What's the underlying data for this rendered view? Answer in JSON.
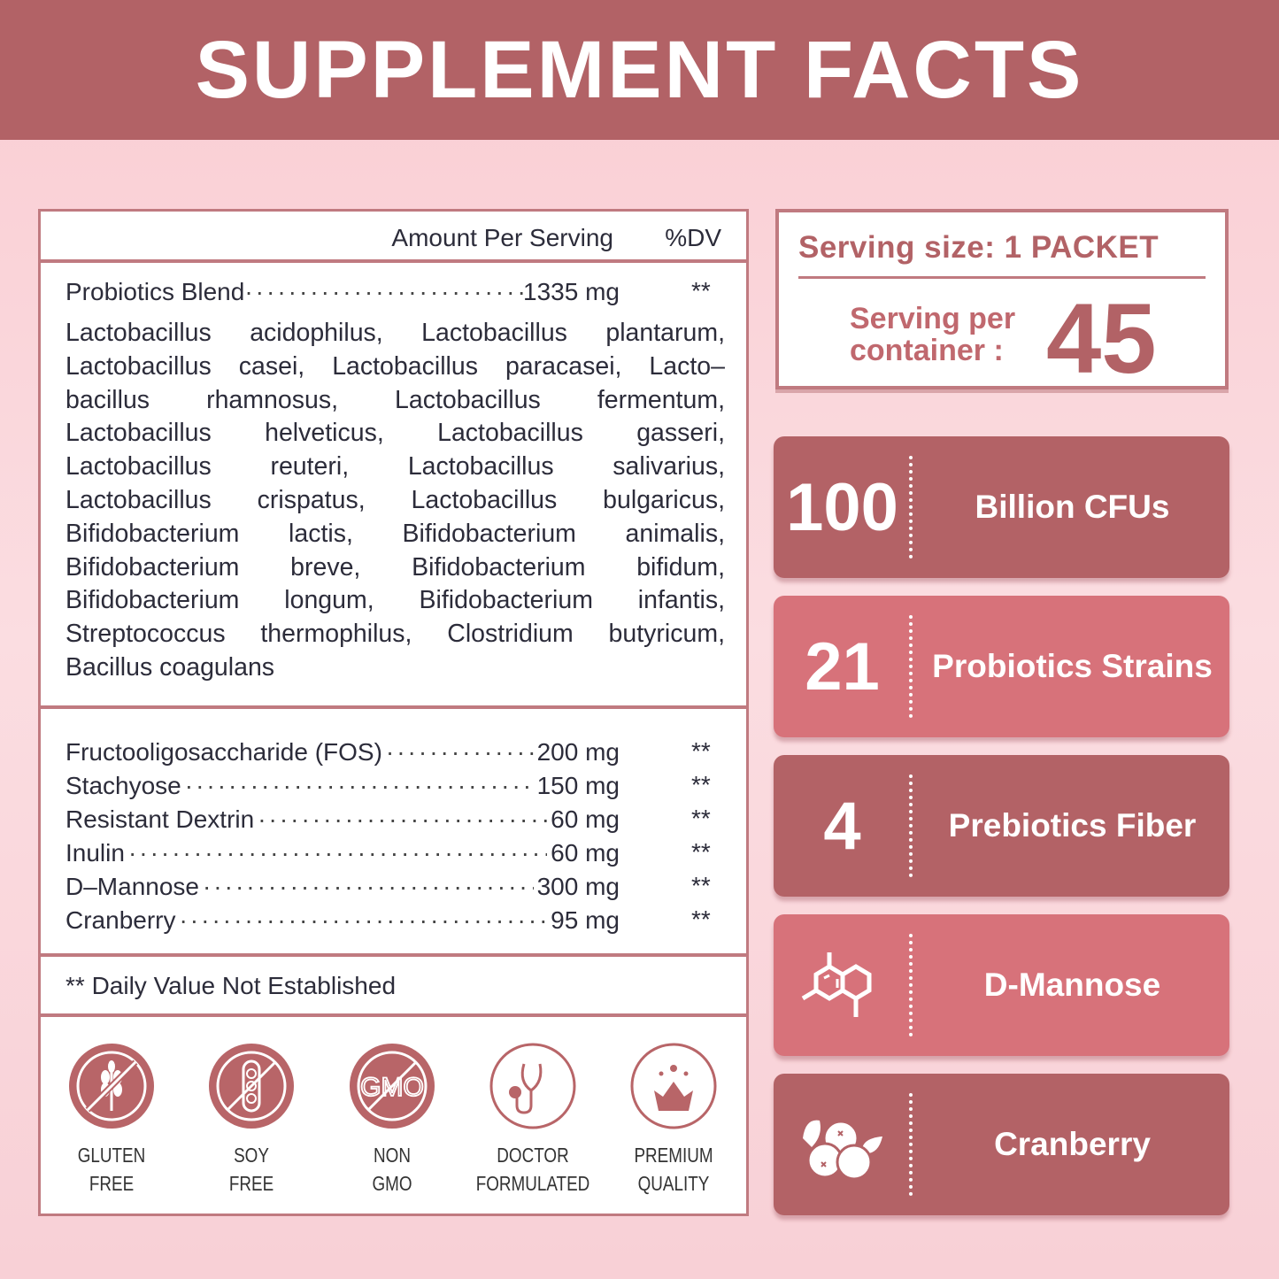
{
  "title": "SUPPLEMENT FACTS",
  "colors": {
    "primary": "#b26266",
    "light_card": "#d7727a",
    "background": "#f9cdd3"
  },
  "facts": {
    "amount_header": "Amount Per Serving",
    "dv_header": "%DV",
    "blend": {
      "name": "Probiotics Blend",
      "amount": "1335 mg",
      "dv": "**"
    },
    "strain_lines": [
      "Lactobacillus acidophilus, Lactobacillus plantarum,",
      "Lactobacillus casei, Lactobacillus paracasei, Lacto–",
      "bacillus rhamnosus, Lactobacillus fermentum,",
      "Lactobacillus helveticus, Lactobacillus gasseri,",
      "Lactobacillus reuteri, Lactobacillus salivarius,",
      "Lactobacillus crispatus, Lactobacillus bulgaricus,",
      "Bifidobacterium lactis, Bifidobacterium animalis,",
      "Bifidobacterium breve, Bifidobacterium bifidum,",
      "Bifidobacterium longum, Bifidobacterium infantis,",
      "Streptococcus thermophilus, Clostridium butyricum,",
      "Bacillus coagulans"
    ],
    "ingredients": [
      {
        "name": "Fructooligosaccharide (FOS)",
        "amount": "200 mg",
        "dv": "**"
      },
      {
        "name": "Stachyose",
        "amount": "150 mg",
        "dv": "**"
      },
      {
        "name": "Resistant Dextrin",
        "amount": "60 mg",
        "dv": "**"
      },
      {
        "name": "Inulin",
        "amount": "60 mg",
        "dv": "**"
      },
      {
        "name": "D–Mannose",
        "amount": "300 mg",
        "dv": "**"
      },
      {
        "name": "Cranberry",
        "amount": "95 mg",
        "dv": "**"
      }
    ],
    "note": "** Daily Value Not Established"
  },
  "badges": [
    {
      "icon": "no-gluten-icon",
      "line1": "GLUTEN",
      "line2": "FREE"
    },
    {
      "icon": "no-soy-icon",
      "line1": "SOY",
      "line2": "FREE"
    },
    {
      "icon": "no-gmo-icon",
      "line1": "NON",
      "line2": "GMO",
      "icon_text": "GMO"
    },
    {
      "icon": "stethoscope-icon",
      "line1": "DOCTOR",
      "line2": "FORMULATED"
    },
    {
      "icon": "crown-icon",
      "line1": "PREMIUM",
      "line2": "QUALITY"
    }
  ],
  "serving": {
    "size": "Serving size: 1 PACKET",
    "per_label_1": "Serving per",
    "per_label_2": "container :",
    "per_value": "45"
  },
  "cards": [
    {
      "number": "100",
      "label": "Billion CFUs"
    },
    {
      "number": "21",
      "label": "Probiotics Strains"
    },
    {
      "number": "4",
      "label": "Prebiotics Fiber"
    },
    {
      "icon": "molecule-icon",
      "label": "D-Mannose"
    },
    {
      "icon": "cranberry-icon",
      "label": "Cranberry"
    }
  ]
}
